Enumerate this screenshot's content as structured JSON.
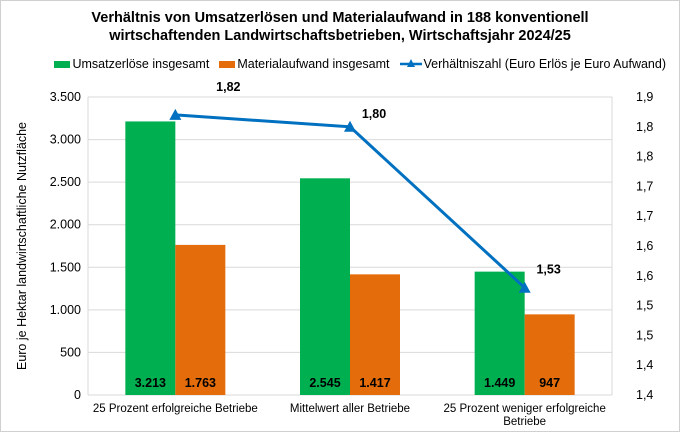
{
  "chart_data": {
    "type": "bar",
    "title_lines": [
      "Verhältnis von Umsatzerlösen und Materialaufwand in 188 konventionell",
      "wirtschaftenden Landwirtschaftsbetrieben, Wirtschaftsjahr 2024/25"
    ],
    "categories": [
      "25 Prozent erfolgreiche Betriebe",
      "Mittelwert  aller Betriebe",
      "25 Prozent weniger erfolgreiche Betriebe"
    ],
    "category_label_lines": [
      [
        "25 Prozent erfolgreiche Betriebe"
      ],
      [
        "Mittelwert  aller Betriebe"
      ],
      [
        "25 Prozent weniger erfolgreiche",
        "Betriebe"
      ]
    ],
    "ylabel": "Euro je Hektar landwirtschaftliche Nutzfläche",
    "ylim": [
      0,
      3500
    ],
    "yticks": [
      0,
      500,
      1000,
      1500,
      2000,
      2500,
      3000,
      3500
    ],
    "ytick_labels": [
      "0",
      "500",
      "1.000",
      "1.500",
      "2.000",
      "2.500",
      "3.000",
      "3.500"
    ],
    "y2lim": [
      1.35,
      1.85
    ],
    "y2ticks": [
      1.35,
      1.4,
      1.45,
      1.5,
      1.55,
      1.6,
      1.65,
      1.7,
      1.75,
      1.8,
      1.85
    ],
    "y2tick_labels": [
      "1,4",
      "1,4",
      "1,5",
      "1,5",
      "1,6",
      "1,6",
      "1,7",
      "1,7",
      "1,8",
      "1,8",
      "1,9"
    ],
    "grid": true,
    "legend_position": "top-right",
    "series": [
      {
        "name": "Umsatzerlöse insgesamt",
        "type": "bar",
        "axis": "left",
        "color": "#00b050",
        "values": [
          3213,
          2545,
          1449
        ],
        "data_labels": [
          "3.213",
          "2.545",
          "1.449"
        ]
      },
      {
        "name": "Materialaufwand insgesamt",
        "type": "bar",
        "axis": "left",
        "color": "#e46c0a",
        "values": [
          1763,
          1417,
          947
        ],
        "data_labels": [
          "1.763",
          "1.417",
          "947"
        ]
      },
      {
        "name": "Verhältniszahl (Euro Erlös je Euro Aufwand)",
        "type": "line",
        "axis": "right",
        "color": "#0070c0",
        "marker": "triangle",
        "values": [
          1.82,
          1.8,
          1.53
        ],
        "data_labels": [
          "1,82",
          "1,80",
          "1,53"
        ]
      }
    ]
  }
}
